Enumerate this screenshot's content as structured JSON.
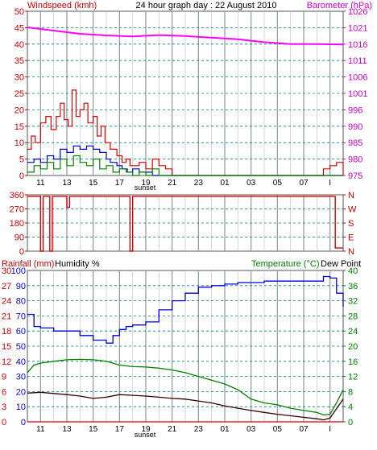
{
  "title": "24 hour graph day : 22 August 2010",
  "colors": {
    "grid": "#9aa4a4",
    "grid_dash": "#008080",
    "axis_red": "#cc0000",
    "axis_magenta": "#cc00cc",
    "axis_green": "#008000",
    "wind": "#dd0000",
    "avg": "#0000cc",
    "gust_green": "#008000",
    "baro": "#ff00ff",
    "humidity": "#0000dd",
    "temp": "#008000",
    "dew": "#330000",
    "rain": "#dd0000",
    "direction": "#dd0000"
  },
  "x_ticks": [
    "11",
    "13",
    "15",
    "17",
    "19",
    "21",
    "23",
    "01",
    "03",
    "05",
    "07",
    "I"
  ],
  "sunset_label": "sunset",
  "chart_data": [
    {
      "type": "line",
      "name": "wind-baro",
      "left_label": "Windspeed (kmh)",
      "right_label": "Barometer (hPa)",
      "left_ticks": [
        "50",
        "45",
        "40",
        "35",
        "30",
        "25",
        "20",
        "15",
        "10",
        "5",
        "0"
      ],
      "right_ticks": [
        "1026",
        "1021",
        "1016",
        "1011",
        "1006",
        "1001",
        "996",
        "990",
        "985",
        "980",
        "975"
      ],
      "ylim_left": [
        0,
        50
      ],
      "ylim_right": [
        975,
        1026
      ],
      "xlim": [
        0,
        24
      ],
      "grid": true,
      "series": [
        {
          "key": "wind",
          "x": [
            0,
            0.3,
            0.6,
            1.0,
            1.4,
            1.8,
            2.2,
            2.5,
            2.8,
            3.1,
            3.4,
            3.7,
            4.0,
            4.3,
            4.6,
            5.0,
            5.3,
            5.6,
            5.9,
            6.3,
            6.8,
            7.2,
            7.5,
            7.8,
            8.5,
            9.0,
            9.5,
            10.0,
            10.5,
            11,
            12,
            13,
            14,
            15,
            16,
            17,
            18,
            19,
            20,
            21,
            22,
            22.5,
            23,
            23.5,
            24
          ],
          "y": [
            8,
            12,
            10,
            16,
            18,
            14,
            18,
            22,
            17,
            15,
            26,
            18,
            20,
            22,
            16,
            18,
            12,
            15,
            10,
            8,
            6,
            4,
            5,
            3,
            4,
            2,
            5,
            3,
            2,
            0,
            0,
            0,
            0,
            0,
            0,
            0,
            0,
            0,
            0,
            0,
            0,
            2,
            3,
            4,
            0
          ]
        },
        {
          "key": "avg",
          "x": [
            0,
            0.5,
            1.0,
            1.5,
            2.0,
            2.5,
            3.0,
            3.5,
            4.0,
            4.5,
            5.0,
            5.5,
            6.0,
            6.3,
            6.8,
            7.2,
            7.6,
            8.0,
            8.5,
            9.0,
            9.5,
            10.0,
            11,
            24
          ],
          "y": [
            4,
            5,
            4,
            6,
            5,
            8,
            7,
            9,
            8,
            9,
            8,
            7,
            5,
            4,
            3,
            2,
            1,
            2,
            1,
            1,
            0,
            0,
            0,
            0
          ]
        },
        {
          "key": "gust_green",
          "x": [
            0,
            0.5,
            1.0,
            1.5,
            2.0,
            2.5,
            3.0,
            3.5,
            4.0,
            4.5,
            5.0,
            5.5,
            6.0,
            6.5,
            7.0,
            7.5,
            8.0,
            8.5,
            9.0,
            9.5,
            10.0,
            24
          ],
          "y": [
            1,
            3,
            2,
            4,
            2,
            5,
            3,
            6,
            4,
            3,
            5,
            2,
            3,
            1,
            2,
            1,
            0,
            1,
            0,
            2,
            0,
            0
          ]
        },
        {
          "key": "baro",
          "axis": "right",
          "x": [
            0,
            2,
            4,
            6,
            8,
            10,
            12,
            14,
            16,
            18,
            20,
            22,
            24
          ],
          "y": [
            1021,
            1020,
            1019,
            1018.5,
            1018.2,
            1018.6,
            1018.3,
            1017.8,
            1017.3,
            1016.4,
            1015.8,
            1015.8,
            1015.7
          ]
        }
      ]
    },
    {
      "type": "line",
      "name": "wind-direction",
      "left_ticks": [
        "360",
        "270",
        "180",
        "90",
        "0"
      ],
      "right_ticks": [
        "N",
        "W",
        "S",
        "E",
        "N"
      ],
      "ylim": [
        0,
        360
      ],
      "xlim": [
        0,
        24
      ],
      "grid": true,
      "series": [
        {
          "key": "direction",
          "x": [
            0,
            1.0,
            1.0,
            1.2,
            1.2,
            1.7,
            1.7,
            1.9,
            1.9,
            3.0,
            3.0,
            3.2,
            3.2,
            7.8,
            7.8,
            8.0,
            8.0,
            23.4,
            23.4,
            24
          ],
          "y": [
            350,
            350,
            0,
            0,
            350,
            350,
            0,
            0,
            350,
            350,
            280,
            280,
            350,
            350,
            0,
            0,
            350,
            350,
            20,
            20
          ]
        }
      ]
    },
    {
      "type": "line",
      "name": "rain-humidity-temperature",
      "left_label": "Rainfall (mm)",
      "humidity_label": "Humidity %",
      "right_label": "Temperature (°C)",
      "dew_label": "Dew Point",
      "rain_ticks": [
        "30",
        "27",
        "24",
        "21",
        "18",
        "15",
        "12",
        "9",
        "6",
        "3",
        "0"
      ],
      "humidity_ticks": [
        "100",
        "90",
        "80",
        "70",
        "60",
        "50",
        "40",
        "30",
        "20",
        "10",
        "0"
      ],
      "temp_ticks": [
        "40",
        "36",
        "32",
        "28",
        "24",
        "20",
        "16",
        "12",
        "8",
        "4",
        "0"
      ],
      "ylim_humidity": [
        0,
        100
      ],
      "ylim_temp": [
        0,
        40
      ],
      "ylim_rain": [
        0,
        30
      ],
      "xlim": [
        0,
        24
      ],
      "grid": true,
      "series": [
        {
          "key": "humidity",
          "x": [
            0,
            0.5,
            1.0,
            2.0,
            3.0,
            4.0,
            5.0,
            6.0,
            6.5,
            7.0,
            7.5,
            8.0,
            9.0,
            10.0,
            11.0,
            12.0,
            13.0,
            14.0,
            15.0,
            16.0,
            17.0,
            18.0,
            19.0,
            20.0,
            21.0,
            22.0,
            22.5,
            23.0,
            23.5,
            24
          ],
          "y": [
            71,
            63,
            62,
            60,
            60,
            57,
            54,
            52,
            57,
            61,
            63,
            64,
            66,
            74,
            80,
            85,
            89,
            90,
            91,
            92,
            92,
            93,
            93,
            93,
            93,
            93,
            96,
            95,
            85,
            76
          ]
        },
        {
          "key": "temp",
          "x": [
            0,
            0.5,
            1.0,
            2.0,
            3.0,
            4.0,
            5.0,
            6.0,
            7.0,
            8.0,
            9.0,
            10.0,
            11.0,
            12.0,
            13.0,
            14.0,
            15.0,
            16.0,
            17.0,
            18.0,
            19.0,
            20.0,
            21.0,
            22.0,
            22.5,
            23.0,
            23.5,
            24
          ],
          "y": [
            13,
            15,
            15.5,
            16,
            16.4,
            16.5,
            16.4,
            16,
            15,
            14.6,
            14.5,
            14.2,
            13.7,
            13,
            12,
            11,
            10,
            8.5,
            6,
            5,
            4.5,
            3.6,
            3,
            2.5,
            1.8,
            2,
            5,
            8.5
          ]
        },
        {
          "key": "dew",
          "x": [
            0,
            1.0,
            2.0,
            3.0,
            4.0,
            5.0,
            6.0,
            7.0,
            8.0,
            9.0,
            10.0,
            11.0,
            12.0,
            13.0,
            14.0,
            15.0,
            16.0,
            17.0,
            18.0,
            19.0,
            20.0,
            21.0,
            22.0,
            22.5,
            23.0,
            23.5,
            24
          ],
          "y": [
            7.6,
            7.8,
            7.5,
            7.2,
            6.8,
            6.2,
            6.5,
            7.2,
            7.0,
            6.8,
            6.5,
            6.2,
            6.0,
            5.5,
            5.0,
            4.2,
            3.6,
            3.0,
            2.5,
            2.0,
            1.6,
            1.2,
            0.8,
            0.5,
            1.0,
            3.5,
            6.0
          ]
        },
        {
          "key": "rain",
          "axis": "rain",
          "x": [
            0,
            24
          ],
          "y": [
            0,
            0
          ]
        }
      ]
    }
  ]
}
